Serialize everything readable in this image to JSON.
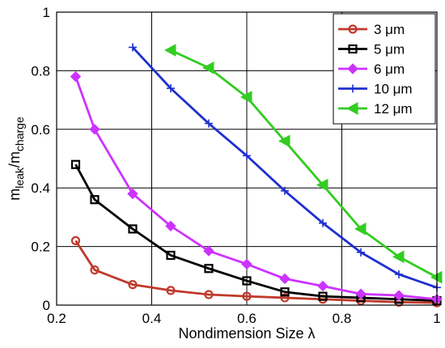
{
  "chart_data": {
    "type": "line",
    "xlabel": "Nondimension Size λ",
    "ylabel_main": "m",
    "ylabel_sub1": "leak",
    "ylabel_sep": "/m",
    "ylabel_sub2": "charge",
    "xlim": [
      0.2,
      1.0
    ],
    "ylim": [
      0,
      1.0
    ],
    "xticks": [
      0.2,
      0.4,
      0.6,
      0.8,
      1.0
    ],
    "xtick_labels": [
      "0.2",
      "0.4",
      "0.6",
      "0.8",
      "1"
    ],
    "yticks": [
      0,
      0.2,
      0.4,
      0.6,
      0.8,
      1.0
    ],
    "ytick_labels": [
      "0",
      "0.2",
      "0.4",
      "0.6",
      "0.8",
      "1"
    ],
    "grid": true,
    "legend_position": "top-right",
    "series": [
      {
        "name": "3 μm",
        "color": "#c0392b",
        "marker": "circle",
        "x": [
          0.24,
          0.28,
          0.36,
          0.44,
          0.52,
          0.6,
          0.68,
          0.76,
          0.84,
          0.92,
          1.0
        ],
        "y": [
          0.22,
          0.12,
          0.07,
          0.05,
          0.036,
          0.03,
          0.025,
          0.02,
          0.015,
          0.01,
          0.008
        ]
      },
      {
        "name": "5 μm",
        "color": "#000000",
        "marker": "square",
        "x": [
          0.24,
          0.28,
          0.36,
          0.44,
          0.52,
          0.6,
          0.68,
          0.76,
          0.84,
          0.92,
          1.0
        ],
        "y": [
          0.48,
          0.36,
          0.26,
          0.17,
          0.125,
          0.083,
          0.045,
          0.03,
          0.025,
          0.02,
          0.015
        ]
      },
      {
        "name": "6 μm",
        "color": "#cc33ff",
        "marker": "diamond",
        "x": [
          0.24,
          0.28,
          0.36,
          0.44,
          0.52,
          0.6,
          0.68,
          0.76,
          0.84,
          0.92,
          1.0
        ],
        "y": [
          0.78,
          0.6,
          0.38,
          0.27,
          0.185,
          0.14,
          0.09,
          0.065,
          0.038,
          0.033,
          0.02
        ]
      },
      {
        "name": "10 μm",
        "color": "#1f2fd0",
        "marker": "plus",
        "x": [
          0.36,
          0.44,
          0.52,
          0.6,
          0.68,
          0.76,
          0.84,
          0.92,
          1.0
        ],
        "y": [
          0.88,
          0.74,
          0.62,
          0.51,
          0.39,
          0.28,
          0.18,
          0.105,
          0.06
        ]
      },
      {
        "name": "12 μm",
        "color": "#33cc22",
        "marker": "triangle-left",
        "x": [
          0.44,
          0.52,
          0.6,
          0.68,
          0.76,
          0.84,
          0.92,
          1.0
        ],
        "y": [
          0.87,
          0.81,
          0.71,
          0.56,
          0.41,
          0.26,
          0.165,
          0.095
        ]
      }
    ]
  }
}
